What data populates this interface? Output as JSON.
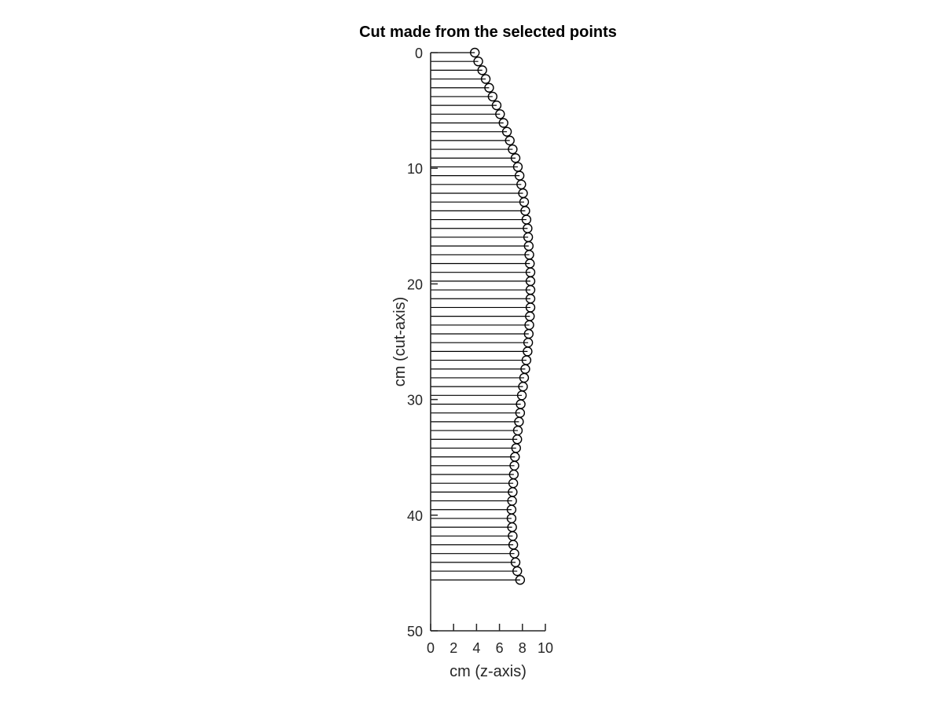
{
  "chart_data": {
    "type": "stem",
    "orientation": "horizontal",
    "title": "Cut made from the selected points",
    "xlabel": "cm (z-axis)",
    "ylabel": "cm (cut-axis)",
    "xlim": [
      0,
      10
    ],
    "ylim": [
      0,
      50
    ],
    "y_reversed": true,
    "x_ticks": [
      0,
      2,
      4,
      6,
      8,
      10
    ],
    "y_ticks": [
      0,
      10,
      20,
      30,
      40,
      50
    ],
    "grid": false,
    "marker": "open-circle",
    "colors": {
      "stem": "#000000",
      "marker": "#000000",
      "axis": "#262626"
    },
    "series": [
      {
        "y": [
          0,
          0.76,
          1.52,
          2.28,
          3.04,
          3.8,
          4.56,
          5.32,
          6.08,
          6.84,
          7.6,
          8.36,
          9.12,
          9.88,
          10.64,
          11.4,
          12.16,
          12.92,
          13.68,
          14.44,
          15.2,
          15.96,
          16.72,
          17.48,
          18.24,
          19.0,
          19.76,
          20.52,
          21.28,
          22.04,
          22.8,
          23.56,
          24.32,
          25.08,
          25.84,
          26.6,
          27.36,
          28.12,
          28.88,
          29.64,
          30.4,
          31.16,
          31.92,
          32.68,
          33.44,
          34.2,
          34.96,
          35.72,
          36.48,
          37.24,
          38.0,
          38.76,
          39.52,
          40.28,
          41.04,
          41.8,
          42.56,
          43.32,
          44.08,
          44.84,
          45.6
        ],
        "x": [
          3.85,
          4.15,
          4.5,
          4.8,
          5.1,
          5.4,
          5.75,
          6.05,
          6.35,
          6.65,
          6.9,
          7.15,
          7.4,
          7.6,
          7.75,
          7.9,
          8.05,
          8.15,
          8.25,
          8.35,
          8.45,
          8.5,
          8.55,
          8.6,
          8.65,
          8.7,
          8.7,
          8.7,
          8.7,
          8.7,
          8.65,
          8.6,
          8.55,
          8.5,
          8.45,
          8.35,
          8.25,
          8.15,
          8.05,
          7.95,
          7.85,
          7.8,
          7.7,
          7.6,
          7.55,
          7.45,
          7.35,
          7.3,
          7.25,
          7.2,
          7.15,
          7.1,
          7.05,
          7.05,
          7.1,
          7.15,
          7.2,
          7.3,
          7.4,
          7.55,
          7.8
        ]
      }
    ]
  }
}
